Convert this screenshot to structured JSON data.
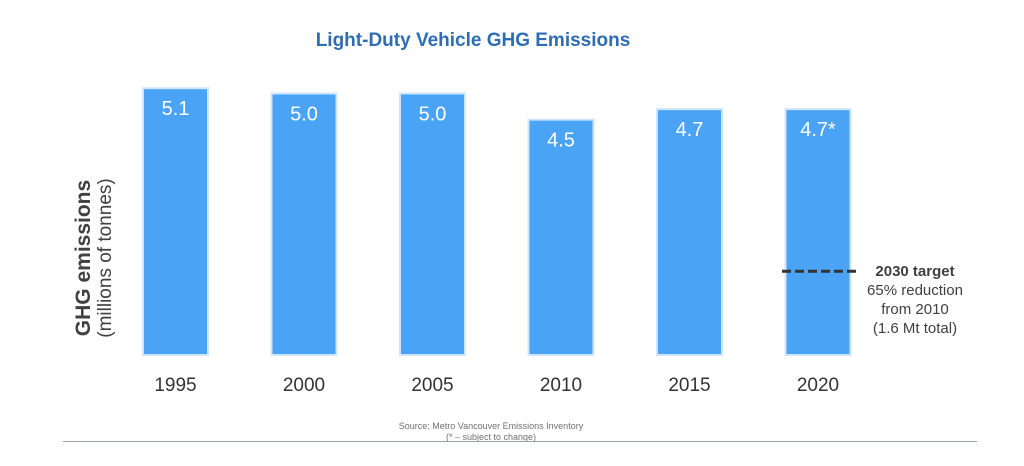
{
  "chart_data": {
    "type": "bar",
    "title": "Light-Duty Vehicle GHG Emissions",
    "ylabel_line1": "GHG emissions",
    "ylabel_line2": "(millions of tonnes)",
    "categories": [
      "1995",
      "2000",
      "2005",
      "2010",
      "2015",
      "2020"
    ],
    "values": [
      5.1,
      5.0,
      5.0,
      4.5,
      4.7,
      4.7
    ],
    "value_labels": [
      "5.1",
      "5.0",
      "5.0",
      "4.5",
      "4.7",
      "4.7*"
    ],
    "ylim": [
      0,
      5.2
    ],
    "grid": false,
    "bar_color": "#4aa3f5",
    "bar_edge_color": "#cfe6fc",
    "target": {
      "value": 1.6,
      "title": "2030 target",
      "line1": "65% reduction",
      "line2": "from 2010",
      "line3": "(1.6 Mt total)",
      "color": "#333333"
    }
  },
  "source": {
    "line1": "Source: Metro Vancouver Emissions Inventory",
    "line2": "(*  – subject to change)"
  },
  "colors": {
    "title": "#2e6db4",
    "text": "#404040",
    "rule": "#98a4a6"
  }
}
